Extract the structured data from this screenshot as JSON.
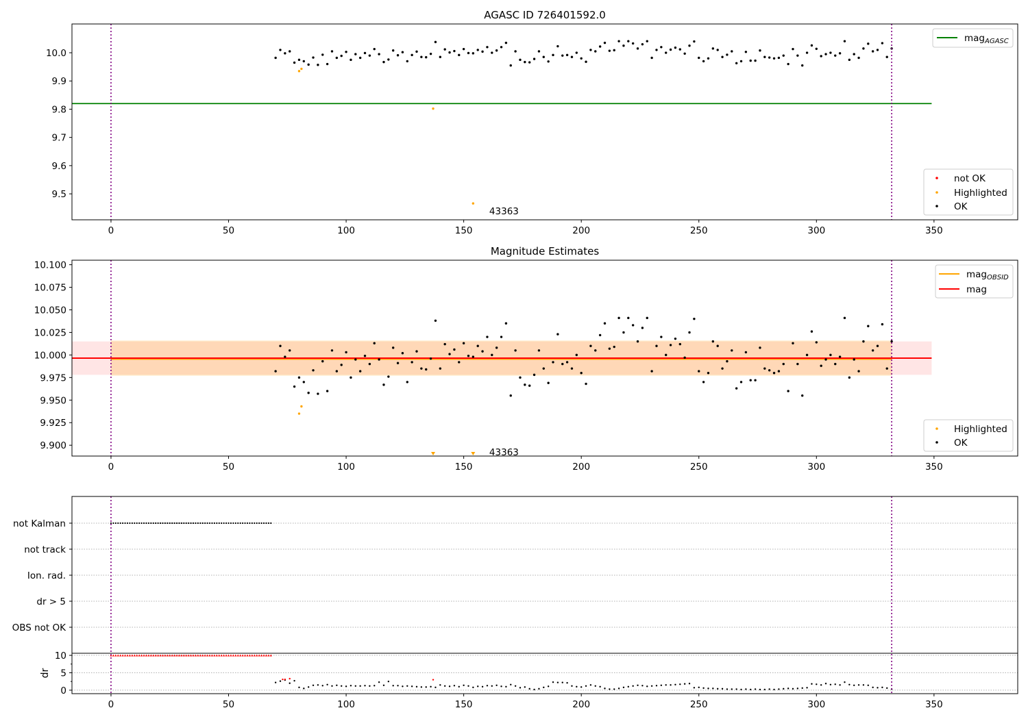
{
  "chart_data": [
    {
      "type": "scatter",
      "title": "AGASC ID 726401592.0",
      "xlim": [
        -16.6,
        385.6
      ],
      "ylim": [
        9.408,
        10.102
      ],
      "xticks": [
        0,
        50,
        100,
        150,
        200,
        250,
        300,
        350
      ],
      "yticks": [
        9.5,
        9.6,
        9.7,
        9.8,
        9.9,
        10.0
      ],
      "ytick_labels": [
        "9.5",
        "9.6",
        "9.7",
        "9.8",
        "9.9",
        "10.0"
      ],
      "mag_agasc": {
        "label": "mag",
        "subscript": "AGASC",
        "value": 9.82,
        "x_range": [
          -16.6,
          349
        ],
        "color": "#008000"
      },
      "annotation": {
        "text": "43363",
        "x": 160,
        "y": 9.44
      },
      "legend_lower": [
        {
          "label": "not OK",
          "color": "#ff0000"
        },
        {
          "label": "Highlighted",
          "color": "#ffa500"
        },
        {
          "label": "OK",
          "color": "#000000"
        }
      ],
      "highlighted": [
        [
          80,
          9.935
        ],
        [
          81,
          9.943
        ],
        [
          137,
          9.802
        ],
        [
          154,
          9.466
        ]
      ]
    },
    {
      "type": "scatter",
      "title": "Magnitude Estimates",
      "xlim": [
        -16.6,
        385.6
      ],
      "ylim": [
        9.888,
        10.105
      ],
      "xticks": [
        0,
        50,
        100,
        150,
        200,
        250,
        300,
        350
      ],
      "yticks": [
        9.9,
        9.925,
        9.95,
        9.975,
        10.0,
        10.025,
        10.05,
        10.075,
        10.1
      ],
      "ytick_labels": [
        "9.900",
        "9.925",
        "9.950",
        "9.975",
        "10.000",
        "10.025",
        "10.050",
        "10.075",
        "10.100"
      ],
      "mag": {
        "label": "mag",
        "value": 9.9965,
        "band": [
          9.978,
          10.015
        ],
        "x_range": [
          -16.6,
          349
        ],
        "color": "#ff0000"
      },
      "mag_obsid": {
        "label": "mag",
        "subscript": "OBSID",
        "value": 9.9955,
        "band": [
          9.977,
          10.016
        ],
        "x_range": [
          0,
          332
        ],
        "color": "#ffa500"
      },
      "annotation": {
        "text": "43363",
        "x": 160,
        "y": 9.8925
      },
      "highlighted": [
        [
          80,
          9.935
        ],
        [
          81,
          9.943
        ]
      ],
      "highlighted_offscale": [
        137,
        154
      ],
      "legend_lower": [
        {
          "label": "Highlighted",
          "color": "#ffa500"
        },
        {
          "label": "OK",
          "color": "#000000"
        }
      ]
    },
    {
      "type": "scatter",
      "title": "",
      "xlim": [
        -16.6,
        385.6
      ],
      "flag_labels": [
        "OBS not OK",
        "dr > 5",
        "Ion. rad.",
        "not track",
        "not Kalman"
      ],
      "not_kalman_range": [
        0,
        68
      ],
      "dr_ylabel": "dr",
      "dr_ylim": [
        -1,
        10.6
      ],
      "dr_yticks": [
        0,
        5,
        10
      ],
      "dr_ytick_labels": [
        "0",
        "5",
        "10"
      ],
      "dr_clipped": {
        "x_range": [
          0,
          68
        ],
        "value": 10
      },
      "dr_not_ok": [
        [
          73,
          3.1
        ],
        [
          74,
          3.1
        ],
        [
          76,
          3.3
        ],
        [
          137,
          3.0
        ]
      ],
      "xticks": [
        0,
        50,
        100,
        150,
        200,
        250,
        300,
        350
      ]
    }
  ],
  "observation_bounds": [
    0,
    332
  ],
  "ok_series": {
    "x_start": 70,
    "x_step": 2,
    "mag": [
      9.982,
      10.01,
      9.998,
      10.005,
      9.965,
      9.975,
      9.97,
      9.958,
      9.983,
      9.957,
      9.993,
      9.96,
      10.005,
      9.982,
      9.989,
      10.003,
      9.975,
      9.995,
      9.982,
      9.999,
      9.99,
      10.013,
      9.995,
      9.967,
      9.976,
      10.008,
      9.991,
      10.002,
      9.97,
      9.992,
      10.004,
      9.985,
      9.984,
      9.996,
      10.038,
      9.985,
      10.012,
      10.001,
      10.006,
      9.992,
      10.013,
      9.999,
      9.998,
      10.01,
      10.004,
      10.02,
      10.0,
      10.008,
      10.02,
      10.035,
      9.955,
      10.005,
      9.975,
      9.967,
      9.966,
      9.978,
      10.005,
      9.985,
      9.969,
      9.992,
      10.023,
      9.99,
      9.992,
      9.985,
      10.0,
      9.98,
      9.968,
      10.01,
      10.005,
      10.022,
      10.035,
      10.007,
      10.009,
      10.041,
      10.025,
      10.041,
      10.033,
      10.015,
      10.03,
      10.041,
      9.982,
      10.01,
      10.02,
      10.0,
      10.011,
      10.018,
      10.012,
      9.997,
      10.025,
      10.04,
      9.982,
      9.97,
      9.98,
      10.015,
      10.01,
      9.985,
      9.993,
      10.005,
      9.963,
      9.97,
      10.003,
      9.972,
      9.972,
      10.008,
      9.985,
      9.983,
      9.98,
      9.982,
      9.99,
      9.96,
      10.013,
      9.99,
      9.955,
      10.0,
      10.026,
      10.014,
      9.988,
      9.995,
      10.0,
      9.99,
      9.998,
      10.041,
      9.975,
      9.995,
      9.982,
      10.015,
      10.032,
      10.005,
      10.01,
      10.034,
      9.985,
      10.015
    ],
    "dr": [
      2.2,
      2.6,
      2.9,
      2.0,
      2.7,
      0.8,
      0.5,
      0.9,
      1.4,
      1.5,
      1.3,
      1.6,
      1.2,
      1.4,
      1.2,
      1.1,
      1.3,
      1.2,
      1.2,
      1.3,
      1.2,
      1.3,
      2.3,
      1.4,
      2.5,
      1.3,
      1.3,
      1.1,
      1.2,
      1.1,
      1.0,
      0.9,
      0.9,
      1.0,
      0.8,
      1.5,
      1.2,
      1.1,
      1.3,
      1.0,
      1.4,
      1.2,
      0.8,
      1.1,
      1.0,
      1.3,
      1.2,
      1.4,
      1.1,
      1.0,
      1.6,
      1.2,
      0.7,
      0.9,
      0.4,
      0.2,
      0.4,
      0.8,
      1.1,
      2.3,
      2.2,
      2.2,
      2.1,
      1.2,
      1.0,
      0.9,
      1.2,
      1.5,
      1.2,
      1.0,
      0.5,
      0.3,
      0.3,
      0.5,
      0.8,
      1.0,
      1.2,
      1.4,
      1.3,
      1.1,
      1.2,
      1.3,
      1.4,
      1.5,
      1.5,
      1.6,
      1.7,
      1.8,
      1.9,
      0.7,
      0.8,
      0.6,
      0.5,
      0.5,
      0.4,
      0.4,
      0.3,
      0.3,
      0.3,
      0.2,
      0.3,
      0.2,
      0.3,
      0.2,
      0.2,
      0.3,
      0.2,
      0.3,
      0.4,
      0.5,
      0.4,
      0.5,
      0.6,
      0.7,
      1.8,
      1.7,
      1.5,
      1.9,
      1.6,
      1.7,
      1.5,
      2.3,
      1.6,
      1.4,
      1.5,
      1.5,
      1.4,
      0.8,
      0.7,
      0.8,
      0.6,
      0.3
    ]
  }
}
